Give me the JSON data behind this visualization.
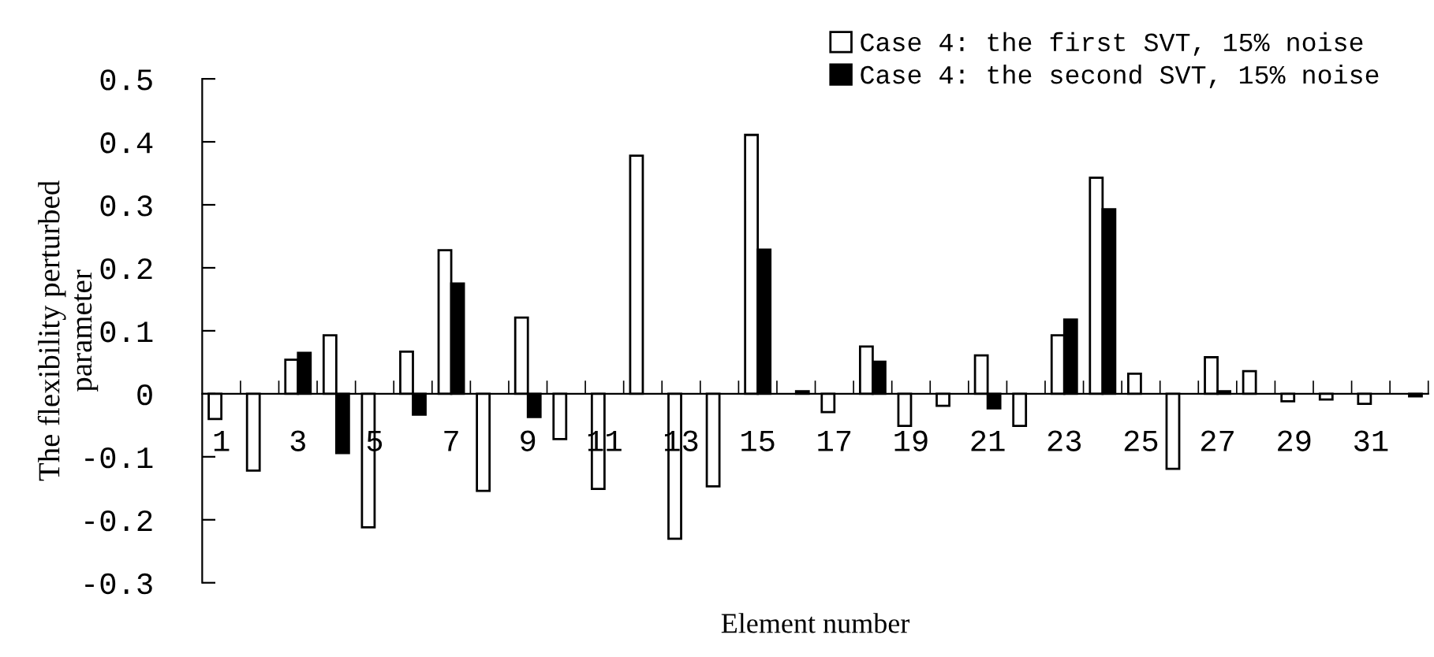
{
  "chart_data": {
    "type": "bar",
    "xlabel": "Element number",
    "ylabel": "The flexibility perturbed parameter",
    "categories": [
      "1",
      null,
      "3",
      null,
      "5",
      null,
      "7",
      null,
      "9",
      null,
      "11",
      null,
      "13",
      null,
      "15",
      null,
      "17",
      null,
      "19",
      null,
      "21",
      null,
      "23",
      null,
      "25",
      null,
      "27",
      null,
      "29",
      null,
      "31",
      null
    ],
    "series": [
      {
        "name": "Case 4: the first SVT, 15% noise",
        "color": "#ffffff",
        "values": [
          -0.04,
          -0.122,
          0.054,
          0.093,
          -0.212,
          0.067,
          0.228,
          -0.154,
          0.121,
          -0.072,
          -0.151,
          0.378,
          -0.23,
          -0.147,
          0.411,
          null,
          -0.029,
          0.075,
          -0.051,
          -0.019,
          0.061,
          -0.051,
          0.093,
          0.343,
          0.032,
          -0.119,
          0.058,
          0.036,
          -0.012,
          -0.009,
          -0.016,
          null
        ]
      },
      {
        "name": "Case 4: the second SVT, 15% noise",
        "color": "#000000",
        "values": [
          null,
          null,
          0.065,
          -0.094,
          null,
          -0.033,
          0.175,
          null,
          -0.037,
          null,
          null,
          null,
          null,
          null,
          0.229,
          0.004,
          null,
          0.051,
          null,
          null,
          -0.023,
          null,
          0.118,
          0.293,
          null,
          null,
          0.004,
          null,
          null,
          null,
          null,
          -0.004
        ]
      }
    ],
    "ylim": [
      -0.3,
      0.5
    ],
    "yticks": [
      -0.3,
      -0.2,
      -0.1,
      0,
      0.1,
      0.2,
      0.3,
      0.4,
      0.5
    ],
    "legend": "top right",
    "grid": false
  }
}
